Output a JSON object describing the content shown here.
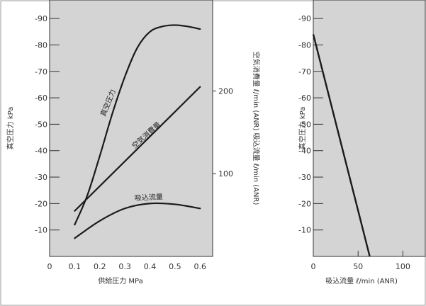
{
  "chart_data": [
    {
      "type": "line",
      "xlabel": "供給圧力 MPa",
      "ylabel": "真空圧力 kPa",
      "y2label": "空気消費量 ℓ/min (ANR) 吸込流量 ℓ/min (ANR)",
      "xlim": [
        0,
        0.65
      ],
      "ylim": [
        0,
        -97
      ],
      "y2lim": [
        0,
        310
      ],
      "x_ticks": [
        "0",
        "0.1",
        "0.2",
        "0.3",
        "0.4",
        "0.5",
        "0.6"
      ],
      "y_ticks": [
        "-10",
        "-20",
        "-30",
        "-40",
        "-50",
        "-60",
        "-70",
        "-80",
        "-90"
      ],
      "y2_ticks": [
        "100",
        "200"
      ],
      "series": [
        {
          "name": "真空圧力",
          "axis": "left",
          "x": [
            0.1,
            0.15,
            0.2,
            0.25,
            0.3,
            0.35,
            0.4,
            0.45,
            0.5,
            0.55,
            0.6
          ],
          "y": [
            -12,
            -23,
            -38,
            -54,
            -68,
            -79,
            -85,
            -87,
            -87.5,
            -87,
            -86
          ]
        },
        {
          "name": "空気消費量",
          "axis": "right",
          "x": [
            0.1,
            0.6
          ],
          "y": [
            55,
            205
          ]
        },
        {
          "name": "吸込流量",
          "axis": "right",
          "x": [
            0.1,
            0.2,
            0.3,
            0.4,
            0.5,
            0.6
          ],
          "y": [
            22,
            43,
            58,
            64,
            63,
            58
          ]
        }
      ]
    },
    {
      "type": "line",
      "xlabel": "吸込流量 ℓ/min (ANR)",
      "ylabel": "真空圧力 kPa",
      "xlim": [
        0,
        125
      ],
      "ylim": [
        0,
        -97
      ],
      "x_ticks": [
        "0",
        "50",
        "100"
      ],
      "y_ticks": [
        "-10",
        "-20",
        "-30",
        "-40",
        "-50",
        "-60",
        "-70",
        "-80",
        "-90"
      ],
      "series": [
        {
          "name": "",
          "axis": "left",
          "x": [
            0,
            63
          ],
          "y": [
            -84,
            0
          ]
        }
      ]
    }
  ]
}
